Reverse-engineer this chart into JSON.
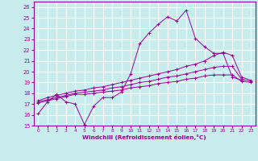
{
  "xlabel": "Windchill (Refroidissement éolien,°C)",
  "bg_color": "#c8ecec",
  "line_color": "#990099",
  "grid_color": "#ffffff",
  "xlim": [
    -0.5,
    23.5
  ],
  "ylim": [
    15,
    26.5
  ],
  "xticks": [
    0,
    1,
    2,
    3,
    4,
    5,
    6,
    7,
    8,
    9,
    10,
    11,
    12,
    13,
    14,
    15,
    16,
    17,
    18,
    19,
    20,
    21,
    22,
    23
  ],
  "yticks": [
    15,
    16,
    17,
    18,
    19,
    20,
    21,
    22,
    23,
    24,
    25,
    26
  ],
  "series": [
    {
      "x": [
        0,
        1,
        2,
        3,
        4,
        5,
        6,
        7,
        8,
        9,
        10,
        11,
        12,
        13,
        14,
        15,
        16,
        17,
        18,
        19,
        20,
        21,
        22
      ],
      "y": [
        16.1,
        17.2,
        17.9,
        17.2,
        17.0,
        15.1,
        16.8,
        17.6,
        17.6,
        18.1,
        19.8,
        22.6,
        23.6,
        24.4,
        25.1,
        24.7,
        25.7,
        23.1,
        22.3,
        21.7,
        21.7,
        19.5,
        19.2
      ]
    },
    {
      "x": [
        0,
        1,
        2,
        3,
        4,
        5,
        6,
        7,
        8,
        9,
        10,
        11,
        12,
        13,
        14,
        15,
        16,
        17,
        18,
        19,
        20,
        21,
        22,
        23
      ],
      "y": [
        17.3,
        17.6,
        17.8,
        18.0,
        18.2,
        18.3,
        18.5,
        18.6,
        18.8,
        19.0,
        19.2,
        19.4,
        19.6,
        19.8,
        20.0,
        20.2,
        20.5,
        20.7,
        21.0,
        21.5,
        21.8,
        21.5,
        19.5,
        19.2
      ]
    },
    {
      "x": [
        0,
        1,
        2,
        3,
        4,
        5,
        6,
        7,
        8,
        9,
        10,
        11,
        12,
        13,
        14,
        15,
        16,
        17,
        18,
        19,
        20,
        21,
        22,
        23
      ],
      "y": [
        17.2,
        17.4,
        17.6,
        17.8,
        18.0,
        18.1,
        18.2,
        18.3,
        18.5,
        18.6,
        18.8,
        19.0,
        19.1,
        19.3,
        19.5,
        19.6,
        19.8,
        20.0,
        20.2,
        20.4,
        20.5,
        20.5,
        19.3,
        19.1
      ]
    },
    {
      "x": [
        0,
        1,
        2,
        3,
        4,
        5,
        6,
        7,
        8,
        9,
        10,
        11,
        12,
        13,
        14,
        15,
        16,
        17,
        18,
        19,
        20,
        21,
        22,
        23
      ],
      "y": [
        17.1,
        17.3,
        17.5,
        17.7,
        17.9,
        17.9,
        18.0,
        18.1,
        18.2,
        18.3,
        18.5,
        18.6,
        18.7,
        18.9,
        19.0,
        19.1,
        19.3,
        19.4,
        19.6,
        19.7,
        19.7,
        19.7,
        19.1,
        19.0
      ]
    }
  ]
}
